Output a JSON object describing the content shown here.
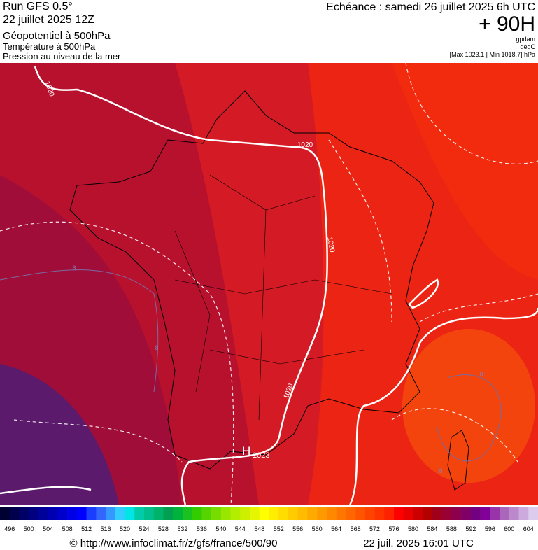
{
  "header": {
    "run": "Run GFS 0.5°",
    "run_date": "22 juillet 2025 12Z",
    "field_1": "Géopotentiel à 500hPa",
    "field_2": "Température à 500hPa",
    "field_3": "Pression au niveau de la mer",
    "valid_time": "Echéance : samedi 26 juillet 2025 6h UTC",
    "lead": "+ 90H",
    "unit_1": "gpdam",
    "unit_2": "degC",
    "unit_3": "[Max 1023.1 | Min 1018.7] hPa"
  },
  "map": {
    "isobar_labels": [
      "1020",
      "1020",
      "1020",
      "1020"
    ],
    "high_symbol": "H",
    "high_value": "1023",
    "temperature_labels": [
      "8",
      "8",
      "8",
      "8"
    ]
  },
  "colorbar": {
    "labels": [
      496,
      500,
      504,
      508,
      512,
      516,
      520,
      524,
      528,
      532,
      536,
      540,
      544,
      548,
      552,
      556,
      560,
      564,
      568,
      572,
      576,
      580,
      584,
      588,
      592,
      596,
      600,
      604
    ],
    "colors": [
      "#000033",
      "#00004d",
      "#000066",
      "#000080",
      "#00009a",
      "#0000b3",
      "#0000cc",
      "#0000e6",
      "#0000ff",
      "#1a3dff",
      "#3366ff",
      "#3399ff",
      "#33ccff",
      "#00e6e6",
      "#00ccaa",
      "#00bf8c",
      "#00b36b",
      "#00a050",
      "#00b33c",
      "#19c21e",
      "#33cc00",
      "#55d400",
      "#77dd00",
      "#99e600",
      "#b3ee00",
      "#ccf000",
      "#e6f500",
      "#ffff00",
      "#ffee00",
      "#ffdd00",
      "#ffcc00",
      "#ffbb00",
      "#ffaa00",
      "#ff9900",
      "#ff8800",
      "#ff7700",
      "#ff6600",
      "#ff5500",
      "#ff4400",
      "#ff3300",
      "#ff2200",
      "#ff0000",
      "#e60000",
      "#cc0000",
      "#b30000",
      "#a0001a",
      "#990033",
      "#8c004d",
      "#800066",
      "#730080",
      "#800099",
      "#9933aa",
      "#aa66bb",
      "#bb88cc",
      "#ccaadd",
      "#ddccee"
    ]
  },
  "footer": {
    "url": "© http://www.infoclimat.fr/z/gfs/france/500/90",
    "timestamp": "22 juil. 2025 16:01 UTC"
  }
}
